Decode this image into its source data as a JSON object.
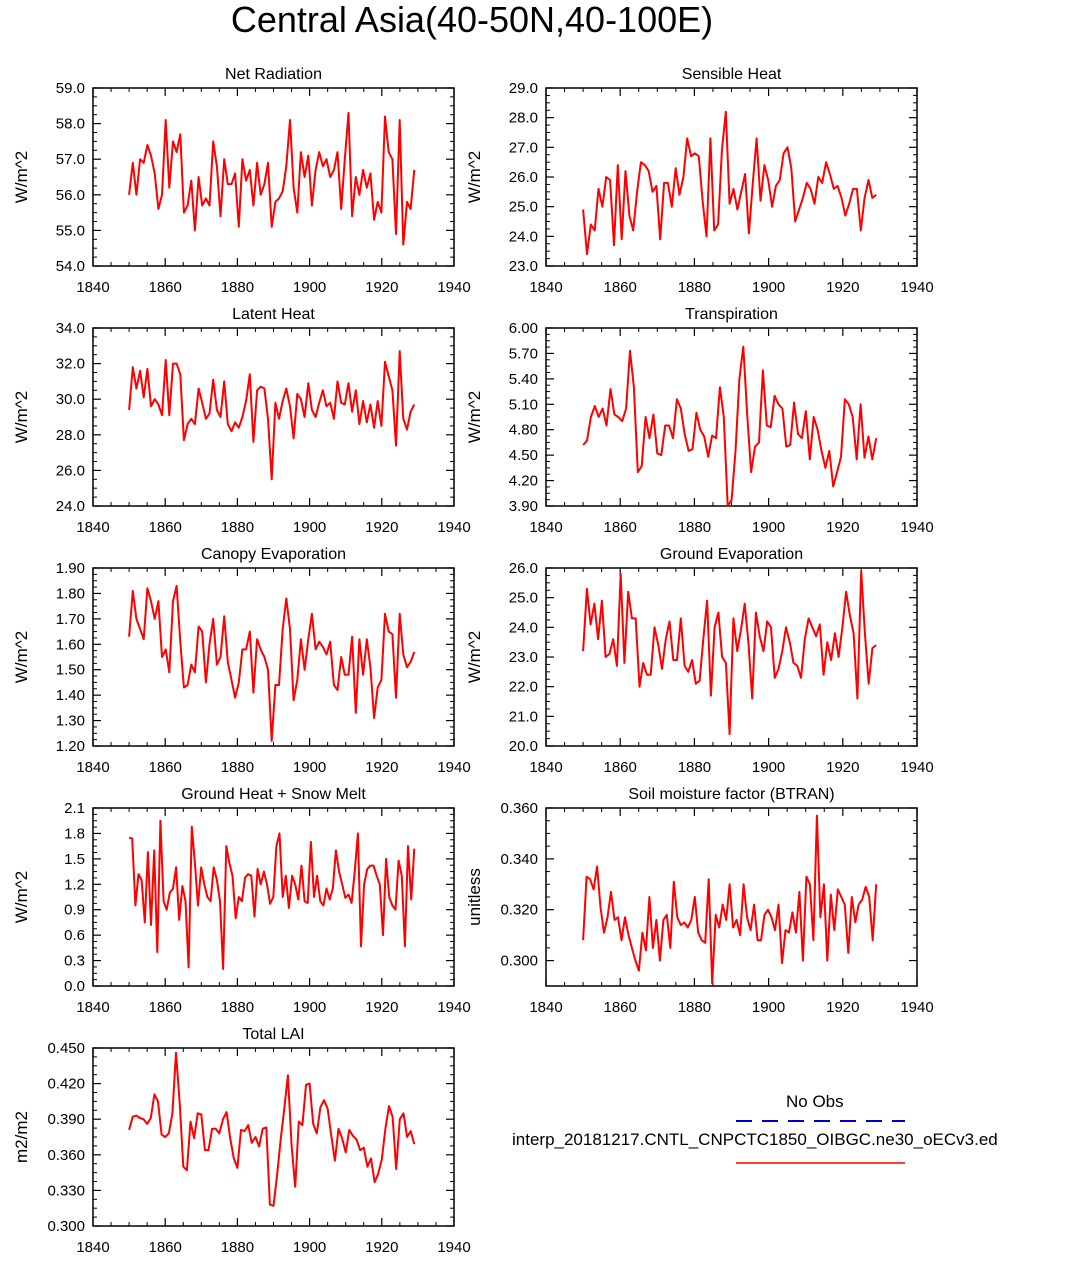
{
  "figure_title": "Central Asia(40-50N,40-100E)",
  "legend": {
    "obs_label": "No Obs",
    "model_label": "interp_20181217.CNTL_CNPCTC1850_OIBGC.ne30_oECv3.ed",
    "obs_color": "#0000cc",
    "model_color": "#ff0000"
  },
  "chart_data": [
    {
      "type": "line",
      "title": "Net Radiation",
      "ylabel": "W/m^2",
      "xlim": [
        1840,
        1940
      ],
      "xticks": [
        1840,
        1860,
        1880,
        1900,
        1920,
        1940
      ],
      "ylim": [
        54.0,
        59.0
      ],
      "yticks": [
        "54.0",
        "55.0",
        "56.0",
        "57.0",
        "58.0",
        "59.0"
      ],
      "x_start": 1850,
      "series": [
        {
          "color": "#ff0000",
          "values": [
            56.0,
            56.9,
            56.0,
            57.0,
            56.9,
            57.4,
            57.1,
            56.6,
            55.6,
            56.0,
            58.1,
            56.2,
            57.5,
            57.2,
            57.7,
            55.5,
            55.7,
            56.4,
            55.0,
            56.5,
            55.7,
            55.9,
            55.7,
            57.5,
            56.8,
            55.4,
            57.0,
            56.3,
            56.3,
            56.6,
            55.1,
            57.0,
            56.4,
            56.7,
            55.7,
            56.9,
            56.0,
            56.3,
            56.9,
            55.1,
            55.8,
            55.9,
            56.1,
            56.8,
            58.1,
            56.2,
            55.5,
            57.2,
            56.5,
            57.1,
            55.7,
            56.7,
            57.2,
            56.8,
            57.0,
            56.5,
            56.7,
            57.2,
            55.6,
            57.0,
            58.3,
            55.4,
            56.5,
            56.0,
            56.7,
            56.2,
            56.6,
            55.3,
            55.8,
            55.5,
            58.2,
            57.2,
            57.0,
            54.9,
            58.1,
            54.6,
            55.8,
            55.6,
            56.7
          ]
        }
      ]
    },
    {
      "type": "line",
      "title": "Sensible Heat",
      "ylabel": "W/m^2",
      "xlim": [
        1840,
        1940
      ],
      "xticks": [
        1840,
        1860,
        1880,
        1900,
        1920,
        1940
      ],
      "ylim": [
        23.0,
        29.0
      ],
      "yticks": [
        "23.0",
        "24.0",
        "25.0",
        "26.0",
        "27.0",
        "28.0",
        "29.0"
      ],
      "x_start": 1850,
      "series": [
        {
          "color": "#ff0000",
          "values": [
            24.9,
            23.4,
            24.4,
            24.2,
            25.6,
            25.0,
            26.0,
            25.9,
            23.7,
            26.4,
            23.9,
            26.2,
            24.7,
            24.2,
            25.5,
            26.5,
            26.4,
            26.2,
            25.5,
            25.7,
            23.9,
            25.8,
            25.8,
            25.0,
            26.3,
            25.4,
            26.0,
            27.3,
            26.7,
            26.8,
            26.7,
            25.2,
            24.0,
            27.3,
            24.2,
            24.4,
            26.9,
            28.2,
            25.1,
            25.6,
            24.9,
            25.5,
            26.1,
            24.1,
            25.8,
            27.3,
            25.2,
            26.4,
            25.9,
            25.0,
            25.7,
            25.9,
            26.8,
            27.0,
            26.3,
            24.5,
            24.9,
            25.3,
            25.8,
            25.6,
            25.1,
            26.0,
            25.8,
            26.5,
            26.1,
            25.6,
            25.7,
            25.3,
            24.7,
            25.1,
            25.6,
            25.6,
            24.2,
            25.3,
            25.9,
            25.3,
            25.4
          ]
        }
      ]
    },
    {
      "type": "line",
      "title": "Latent Heat",
      "ylabel": "W/m^2",
      "xlim": [
        1840,
        1940
      ],
      "xticks": [
        1840,
        1860,
        1880,
        1900,
        1920,
        1940
      ],
      "ylim": [
        24.0,
        34.0
      ],
      "yticks": [
        "24.0",
        "26.0",
        "28.0",
        "30.0",
        "32.0",
        "34.0"
      ],
      "x_start": 1850,
      "series": [
        {
          "color": "#ff0000",
          "values": [
            29.4,
            31.8,
            30.6,
            31.6,
            30.1,
            31.7,
            29.6,
            30.0,
            29.7,
            29.1,
            32.2,
            29.1,
            32.0,
            32.0,
            31.4,
            27.7,
            28.6,
            28.9,
            28.6,
            30.6,
            29.8,
            28.9,
            29.2,
            31.1,
            29.4,
            29.0,
            31.0,
            28.6,
            28.2,
            28.7,
            28.4,
            29.0,
            29.9,
            31.4,
            27.6,
            30.5,
            30.7,
            30.6,
            28.9,
            25.5,
            29.8,
            28.9,
            29.9,
            30.6,
            29.6,
            27.8,
            30.3,
            30.0,
            29.0,
            30.9,
            29.4,
            29.0,
            29.8,
            30.5,
            29.6,
            29.8,
            28.9,
            31.0,
            29.8,
            29.7,
            30.9,
            29.3,
            30.5,
            28.6,
            29.9,
            28.7,
            29.7,
            28.4,
            29.9,
            28.5,
            32.1,
            31.3,
            30.5,
            27.4,
            32.7,
            28.9,
            28.3,
            29.3,
            29.7
          ]
        }
      ]
    },
    {
      "type": "line",
      "title": "Transpiration",
      "ylabel": "W/m^2",
      "xlim": [
        1840,
        1940
      ],
      "xticks": [
        1840,
        1860,
        1880,
        1900,
        1920,
        1940
      ],
      "ylim": [
        3.9,
        6.0
      ],
      "yticks": [
        "3.90",
        "4.20",
        "4.50",
        "4.80",
        "5.10",
        "5.40",
        "5.70",
        "6.00"
      ],
      "x_start": 1850,
      "series": [
        {
          "color": "#ff0000",
          "values": [
            4.62,
            4.67,
            4.95,
            5.08,
            4.95,
            5.05,
            4.85,
            5.28,
            4.98,
            4.95,
            4.9,
            5.05,
            5.73,
            5.3,
            4.3,
            4.37,
            4.95,
            4.7,
            4.98,
            4.52,
            4.5,
            4.85,
            4.85,
            4.7,
            5.16,
            5.05,
            4.75,
            4.55,
            4.57,
            5.0,
            4.8,
            4.72,
            4.48,
            4.73,
            4.7,
            5.3,
            4.95,
            3.9,
            3.97,
            4.55,
            5.4,
            5.78,
            4.98,
            4.3,
            4.6,
            4.65,
            5.5,
            4.85,
            4.83,
            5.2,
            5.1,
            5.05,
            4.6,
            4.62,
            5.12,
            4.75,
            4.7,
            5.02,
            4.45,
            4.95,
            4.8,
            4.55,
            4.35,
            4.55,
            4.13,
            4.3,
            4.48,
            5.16,
            5.1,
            4.95,
            4.45,
            5.1,
            4.47,
            4.72,
            4.45,
            4.7
          ]
        }
      ]
    },
    {
      "type": "line",
      "title": "Canopy Evaporation",
      "ylabel": "W/m^2",
      "xlim": [
        1840,
        1940
      ],
      "xticks": [
        1840,
        1860,
        1880,
        1900,
        1920,
        1940
      ],
      "ylim": [
        1.2,
        1.9
      ],
      "yticks": [
        "1.20",
        "1.30",
        "1.40",
        "1.50",
        "1.60",
        "1.70",
        "1.80",
        "1.90"
      ],
      "x_start": 1850,
      "series": [
        {
          "color": "#ff0000",
          "values": [
            1.63,
            1.81,
            1.7,
            1.66,
            1.62,
            1.82,
            1.77,
            1.7,
            1.77,
            1.55,
            1.58,
            1.49,
            1.77,
            1.83,
            1.61,
            1.43,
            1.44,
            1.52,
            1.49,
            1.67,
            1.65,
            1.45,
            1.6,
            1.7,
            1.52,
            1.55,
            1.71,
            1.53,
            1.46,
            1.39,
            1.45,
            1.58,
            1.58,
            1.65,
            1.41,
            1.62,
            1.58,
            1.55,
            1.5,
            1.22,
            1.44,
            1.44,
            1.66,
            1.78,
            1.66,
            1.38,
            1.46,
            1.62,
            1.5,
            1.62,
            1.72,
            1.58,
            1.61,
            1.59,
            1.56,
            1.61,
            1.44,
            1.42,
            1.55,
            1.48,
            1.48,
            1.63,
            1.33,
            1.62,
            1.48,
            1.62,
            1.51,
            1.31,
            1.43,
            1.46,
            1.72,
            1.65,
            1.64,
            1.39,
            1.72,
            1.56,
            1.51,
            1.53,
            1.57
          ]
        }
      ]
    },
    {
      "type": "line",
      "title": "Ground Evaporation",
      "ylabel": "W/m^2",
      "xlim": [
        1840,
        1940
      ],
      "xticks": [
        1840,
        1860,
        1880,
        1900,
        1920,
        1940
      ],
      "ylim": [
        20.0,
        26.0
      ],
      "yticks": [
        "20.0",
        "21.0",
        "22.0",
        "23.0",
        "24.0",
        "25.0",
        "26.0"
      ],
      "x_start": 1850,
      "series": [
        {
          "color": "#ff0000",
          "values": [
            23.2,
            25.3,
            24.1,
            24.8,
            23.6,
            24.9,
            23.0,
            23.1,
            23.6,
            22.7,
            25.8,
            22.8,
            25.2,
            24.3,
            24.3,
            22.0,
            22.8,
            22.4,
            22.4,
            24.0,
            23.4,
            22.6,
            23.6,
            24.2,
            22.9,
            22.9,
            24.3,
            22.7,
            22.5,
            22.9,
            22.1,
            22.2,
            23.6,
            24.9,
            21.7,
            24.0,
            24.5,
            23.0,
            22.8,
            20.4,
            24.3,
            23.2,
            23.9,
            24.8,
            23.5,
            21.6,
            24.5,
            23.7,
            23.2,
            24.2,
            24.0,
            22.3,
            22.6,
            23.2,
            24.0,
            23.5,
            22.8,
            22.7,
            22.3,
            23.6,
            24.3,
            24.0,
            23.7,
            24.1,
            22.4,
            23.5,
            22.9,
            23.8,
            23.0,
            24.0,
            25.2,
            24.4,
            23.8,
            21.6,
            25.9,
            23.8,
            22.1,
            23.3,
            23.4
          ]
        }
      ]
    },
    {
      "type": "line",
      "title": "Ground Heat + Snow Melt",
      "ylabel": "W/m^2",
      "xlim": [
        1840,
        1940
      ],
      "xticks": [
        1840,
        1860,
        1880,
        1900,
        1920,
        1940
      ],
      "ylim": [
        0.0,
        2.1
      ],
      "yticks": [
        "0.0",
        "0.3",
        "0.6",
        "0.9",
        "1.2",
        "1.5",
        "1.8",
        "2.1"
      ],
      "x_start": 1850,
      "series": [
        {
          "color": "#ff0000",
          "values": [
            1.75,
            1.74,
            0.95,
            1.32,
            1.25,
            0.75,
            1.58,
            0.72,
            1.6,
            0.4,
            1.95,
            1.0,
            0.9,
            1.1,
            1.15,
            1.4,
            0.78,
            1.18,
            1.0,
            0.22,
            1.88,
            1.45,
            0.95,
            1.4,
            1.2,
            1.05,
            1.0,
            1.4,
            1.25,
            1.0,
            0.2,
            1.65,
            1.45,
            1.3,
            0.8,
            1.05,
            1.0,
            1.28,
            1.32,
            1.3,
            0.82,
            1.38,
            1.2,
            1.35,
            1.2,
            0.97,
            1.05,
            1.65,
            1.8,
            1.05,
            1.3,
            0.92,
            1.3,
            1.2,
            1.02,
            1.42,
            1.0,
            0.98,
            1.7,
            1.05,
            1.3,
            1.0,
            0.95,
            1.15,
            1.02,
            1.15,
            1.6,
            1.35,
            1.2,
            1.04,
            1.08,
            0.98,
            1.35,
            1.8,
            0.47,
            1.2,
            1.38,
            1.42,
            1.42,
            1.3,
            1.2,
            0.6,
            1.5,
            1.05,
            0.95,
            0.9,
            1.48,
            1.3,
            0.47,
            1.65,
            1.02,
            1.62
          ]
        }
      ]
    },
    {
      "type": "line",
      "title": "Soil moisture factor (BTRAN)",
      "ylabel": "unitless",
      "xlim": [
        1840,
        1940
      ],
      "xticks": [
        1840,
        1860,
        1880,
        1900,
        1920,
        1940
      ],
      "ylim": [
        0.29,
        0.36
      ],
      "yticks": [
        "0.300",
        "0.320",
        "0.340",
        "0.360"
      ],
      "x_start": 1850,
      "series": [
        {
          "color": "#ff0000",
          "values": [
            0.308,
            0.333,
            0.332,
            0.328,
            0.337,
            0.321,
            0.311,
            0.317,
            0.327,
            0.316,
            0.317,
            0.308,
            0.317,
            0.31,
            0.305,
            0.3,
            0.296,
            0.311,
            0.304,
            0.325,
            0.305,
            0.316,
            0.3,
            0.316,
            0.318,
            0.305,
            0.331,
            0.317,
            0.314,
            0.315,
            0.313,
            0.316,
            0.325,
            0.311,
            0.308,
            0.307,
            0.332,
            0.291,
            0.318,
            0.313,
            0.322,
            0.316,
            0.33,
            0.313,
            0.316,
            0.31,
            0.33,
            0.317,
            0.312,
            0.322,
            0.308,
            0.308,
            0.318,
            0.32,
            0.317,
            0.312,
            0.322,
            0.299,
            0.312,
            0.311,
            0.319,
            0.311,
            0.327,
            0.3,
            0.333,
            0.33,
            0.308,
            0.357,
            0.317,
            0.33,
            0.3,
            0.326,
            0.312,
            0.328,
            0.325,
            0.322,
            0.303,
            0.325,
            0.315,
            0.322,
            0.324,
            0.329,
            0.325,
            0.308,
            0.33
          ]
        }
      ]
    },
    {
      "type": "line",
      "title": "Total LAI",
      "ylabel": "m2/m2",
      "xlim": [
        1840,
        1940
      ],
      "xticks": [
        1840,
        1860,
        1880,
        1900,
        1920,
        1940
      ],
      "ylim": [
        0.3,
        0.45
      ],
      "yticks": [
        "0.300",
        "0.330",
        "0.360",
        "0.390",
        "0.420",
        "0.450"
      ],
      "x_start": 1850,
      "series": [
        {
          "color": "#ff0000",
          "values": [
            0.381,
            0.392,
            0.393,
            0.391,
            0.39,
            0.386,
            0.391,
            0.411,
            0.405,
            0.377,
            0.375,
            0.378,
            0.395,
            0.446,
            0.405,
            0.35,
            0.347,
            0.388,
            0.374,
            0.395,
            0.394,
            0.364,
            0.364,
            0.382,
            0.382,
            0.378,
            0.39,
            0.396,
            0.374,
            0.357,
            0.349,
            0.381,
            0.38,
            0.385,
            0.37,
            0.375,
            0.367,
            0.382,
            0.383,
            0.318,
            0.317,
            0.343,
            0.373,
            0.399,
            0.427,
            0.368,
            0.333,
            0.388,
            0.385,
            0.419,
            0.42,
            0.386,
            0.378,
            0.4,
            0.406,
            0.399,
            0.376,
            0.355,
            0.382,
            0.374,
            0.362,
            0.381,
            0.376,
            0.373,
            0.364,
            0.366,
            0.35,
            0.357,
            0.337,
            0.344,
            0.356,
            0.382,
            0.401,
            0.392,
            0.348,
            0.39,
            0.395,
            0.375,
            0.38,
            0.369
          ]
        }
      ]
    }
  ]
}
